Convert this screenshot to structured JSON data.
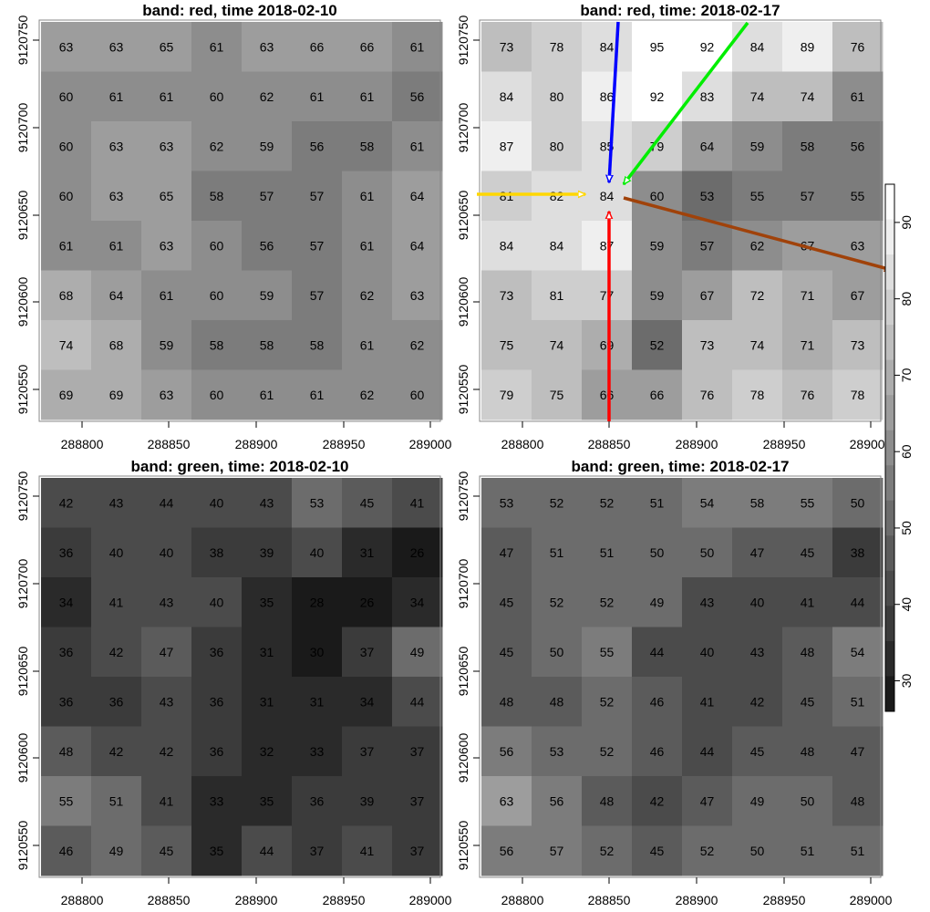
{
  "chart_data": {
    "type": "heatmap",
    "colormap": "grey",
    "x_ticks": [
      "288800",
      "288850",
      "288900",
      "288950",
      "289000"
    ],
    "y_ticks": [
      "9120550",
      "9120600",
      "9120650",
      "9120700",
      "9120750"
    ],
    "legend": {
      "placement": "right",
      "ticks": [
        "30",
        "40",
        "50",
        "60",
        "70",
        "80",
        "90"
      ],
      "range": [
        26,
        95
      ]
    },
    "panels": [
      {
        "title": "band: red, time 2018-02-10",
        "values": [
          [
            63,
            63,
            65,
            61,
            63,
            66,
            66,
            61
          ],
          [
            60,
            61,
            61,
            60,
            62,
            61,
            61,
            56
          ],
          [
            60,
            63,
            63,
            62,
            59,
            56,
            58,
            61
          ],
          [
            60,
            63,
            65,
            58,
            57,
            57,
            61,
            64
          ],
          [
            61,
            61,
            63,
            60,
            56,
            57,
            61,
            64
          ],
          [
            68,
            64,
            61,
            60,
            59,
            57,
            62,
            63
          ],
          [
            74,
            68,
            59,
            58,
            58,
            58,
            61,
            62
          ],
          [
            69,
            69,
            63,
            60,
            61,
            61,
            62,
            60
          ]
        ]
      },
      {
        "title": "band: red, time: 2018-02-17",
        "values": [
          [
            73,
            78,
            84,
            95,
            92,
            84,
            89,
            76
          ],
          [
            84,
            80,
            86,
            92,
            83,
            74,
            74,
            61
          ],
          [
            87,
            80,
            85,
            79,
            64,
            59,
            58,
            56
          ],
          [
            81,
            82,
            84,
            60,
            53,
            55,
            57,
            55
          ],
          [
            84,
            84,
            87,
            59,
            57,
            62,
            67,
            63
          ],
          [
            73,
            81,
            77,
            59,
            67,
            72,
            71,
            67
          ],
          [
            75,
            74,
            69,
            52,
            73,
            74,
            71,
            73
          ],
          [
            79,
            75,
            66,
            66,
            76,
            78,
            76,
            78
          ]
        ],
        "arrows": [
          {
            "color": "#0000ff"
          },
          {
            "color": "#00ee00"
          },
          {
            "color": "#ffd700"
          },
          {
            "color": "#a0420a"
          },
          {
            "color": "#ff0000"
          }
        ]
      },
      {
        "title": "band: green, time: 2018-02-10",
        "values": [
          [
            42,
            43,
            44,
            40,
            43,
            53,
            45,
            41
          ],
          [
            36,
            40,
            40,
            38,
            39,
            40,
            31,
            26
          ],
          [
            34,
            41,
            43,
            40,
            35,
            28,
            26,
            34
          ],
          [
            36,
            42,
            47,
            36,
            31,
            30,
            37,
            49
          ],
          [
            36,
            36,
            43,
            36,
            31,
            31,
            34,
            44
          ],
          [
            48,
            42,
            42,
            36,
            32,
            33,
            37,
            37
          ],
          [
            55,
            51,
            41,
            33,
            35,
            36,
            39,
            37
          ],
          [
            46,
            49,
            45,
            35,
            44,
            37,
            41,
            37
          ]
        ]
      },
      {
        "title": "band: green, time: 2018-02-17",
        "values": [
          [
            53,
            52,
            52,
            51,
            54,
            58,
            55,
            50
          ],
          [
            47,
            51,
            51,
            50,
            50,
            47,
            45,
            38
          ],
          [
            45,
            52,
            52,
            49,
            43,
            40,
            41,
            44
          ],
          [
            45,
            50,
            55,
            44,
            40,
            43,
            48,
            54
          ],
          [
            48,
            48,
            52,
            46,
            41,
            42,
            45,
            51
          ],
          [
            56,
            53,
            52,
            46,
            44,
            45,
            48,
            47
          ],
          [
            63,
            56,
            48,
            42,
            47,
            49,
            50,
            48
          ],
          [
            56,
            57,
            52,
            45,
            52,
            50,
            51,
            51
          ]
        ]
      }
    ]
  }
}
